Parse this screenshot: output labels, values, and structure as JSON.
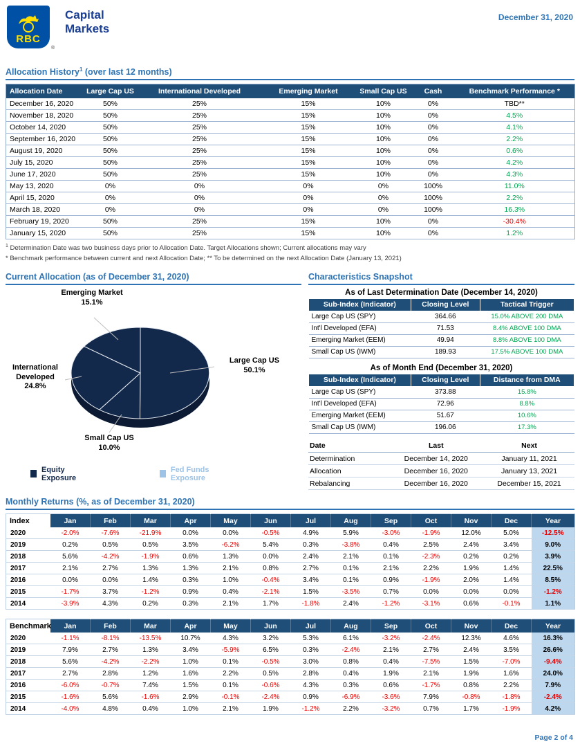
{
  "header": {
    "logo_text": "RBC",
    "registered_mark": "®",
    "brand": "Capital Markets",
    "date": "December 31, 2020"
  },
  "colors": {
    "rbc_blue": "#0051A5",
    "rbc_yellow": "#FEDF01",
    "table_header_navy": "#1F4E79",
    "accent_blue": "#2E74B5",
    "positive_green": "#00A651",
    "negative_red": "#E60000",
    "year_column_bg": "#BDD7EE",
    "pie_equity_navy": "#13294B",
    "pie_fed_funds_blue": "#9DC3E6"
  },
  "allocation_history": {
    "title_main": "Allocation History",
    "title_sup": "1",
    "title_suffix": " (over last 12 months)",
    "columns": [
      "Allocation Date",
      "Large Cap US",
      "International Developed",
      "Emerging Market",
      "Small Cap US",
      "Cash",
      "Benchmark Performance *"
    ],
    "rows": [
      [
        "December 16, 2020",
        "50%",
        "25%",
        "15%",
        "10%",
        "0%",
        "TBD**"
      ],
      [
        "November 18, 2020",
        "50%",
        "25%",
        "15%",
        "10%",
        "0%",
        "4.5%"
      ],
      [
        "October 14, 2020",
        "50%",
        "25%",
        "15%",
        "10%",
        "0%",
        "4.1%"
      ],
      [
        "September 16, 2020",
        "50%",
        "25%",
        "15%",
        "10%",
        "0%",
        "2.2%"
      ],
      [
        "August 19, 2020",
        "50%",
        "25%",
        "15%",
        "10%",
        "0%",
        "0.6%"
      ],
      [
        "July 15, 2020",
        "50%",
        "25%",
        "15%",
        "10%",
        "0%",
        "4.2%"
      ],
      [
        "June 17, 2020",
        "50%",
        "25%",
        "15%",
        "10%",
        "0%",
        "4.3%"
      ],
      [
        "May 13, 2020",
        "0%",
        "0%",
        "0%",
        "0%",
        "100%",
        "11.0%"
      ],
      [
        "April 15, 2020",
        "0%",
        "0%",
        "0%",
        "0%",
        "100%",
        "2.2%"
      ],
      [
        "March 18, 2020",
        "0%",
        "0%",
        "0%",
        "0%",
        "100%",
        "16.3%"
      ],
      [
        "February 19, 2020",
        "50%",
        "25%",
        "15%",
        "10%",
        "0%",
        "-30.4%"
      ],
      [
        "January 15, 2020",
        "50%",
        "25%",
        "15%",
        "10%",
        "0%",
        "1.2%"
      ]
    ],
    "footnote1_sup": "1",
    "footnote1_text": " Determination Date was two business days prior to Allocation Date. Target Allocations shown; Current allocations may vary",
    "footnote2": "* Benchmark performance between current and next Allocation Date;  ** To be determined on the next Allocation Date (January 13, 2021)"
  },
  "current_allocation": {
    "title": "Current Allocation (as of December 31, 2020)"
  },
  "chart_data": {
    "type": "pie",
    "title": "Current Allocation (as of December 31, 2020)",
    "labels": [
      "Large Cap US",
      "International Developed",
      "Emerging Market",
      "Small Cap US"
    ],
    "values": [
      50.1,
      24.8,
      15.1,
      10.0
    ],
    "display_values": [
      "50.1%",
      "24.8%",
      "15.1%",
      "10.0%"
    ],
    "legend": [
      "Equity Exposure",
      "Fed Funds Exposure"
    ],
    "legend_position": "bottom",
    "slice_color_equity": "#13294B",
    "slice_color_fed_funds": "#9DC3E6"
  },
  "characteristics": {
    "title": "Characteristics Snapshot",
    "determination_table": {
      "caption": "As of Last Determination Date (December 14, 2020)",
      "columns": [
        "Sub-Index (Indicator)",
        "Closing Level",
        "Tactical Trigger"
      ],
      "rows": [
        [
          "Large Cap US (SPY)",
          "364.66",
          "15.0% ABOVE 200 DMA"
        ],
        [
          "Int'l Developed (EFA)",
          "71.53",
          "8.4% ABOVE 100 DMA"
        ],
        [
          "Emerging Market (EEM)",
          "49.94",
          "8.8% ABOVE 100 DMA"
        ],
        [
          "Small Cap US (IWM)",
          "189.93",
          "17.5% ABOVE 100 DMA"
        ]
      ]
    },
    "month_end_table": {
      "caption": "As of Month End (December 31, 2020)",
      "columns": [
        "Sub-Index (Indicator)",
        "Closing Level",
        "Distance from DMA"
      ],
      "rows": [
        [
          "Large Cap US (SPY)",
          "373.88",
          "15.8%"
        ],
        [
          "Int'l Developed (EFA)",
          "72.96",
          "8.8%"
        ],
        [
          "Emerging Market (EEM)",
          "51.67",
          "10.6%"
        ],
        [
          "Small Cap US (IWM)",
          "196.06",
          "17.3%"
        ]
      ]
    },
    "dates_table": {
      "columns": [
        "Date",
        "Last",
        "Next"
      ],
      "rows": [
        [
          "Determination",
          "December 14, 2020",
          "January 11, 2021"
        ],
        [
          "Allocation",
          "December 16, 2020",
          "January 13, 2021"
        ],
        [
          "Rebalancing",
          "December 16, 2020",
          "December 15, 2021"
        ]
      ]
    }
  },
  "monthly_returns": {
    "title": "Monthly Returns (%, as of December 31, 2020)",
    "index_label": "Index",
    "benchmark_label": "Benchmark",
    "year_label": "Year",
    "months": [
      "Jan",
      "Feb",
      "Mar",
      "Apr",
      "May",
      "Jun",
      "Jul",
      "Aug",
      "Sep",
      "Oct",
      "Nov",
      "Dec"
    ],
    "index_rows": [
      {
        "year": "2020",
        "values": [
          "-2.0%",
          "-7.6%",
          "-21.9%",
          "0.0%",
          "0.0%",
          "-0.5%",
          "4.9%",
          "5.9%",
          "-3.0%",
          "-1.9%",
          "12.0%",
          "5.0%"
        ],
        "total": "-12.5%"
      },
      {
        "year": "2019",
        "values": [
          "0.2%",
          "0.5%",
          "0.5%",
          "3.5%",
          "-6.2%",
          "5.4%",
          "0.3%",
          "-3.8%",
          "0.4%",
          "2.5%",
          "2.4%",
          "3.4%"
        ],
        "total": "9.0%"
      },
      {
        "year": "2018",
        "values": [
          "5.6%",
          "-4.2%",
          "-1.9%",
          "0.6%",
          "1.3%",
          "0.0%",
          "2.4%",
          "2.1%",
          "0.1%",
          "-2.3%",
          "0.2%",
          "0.2%"
        ],
        "total": "3.9%"
      },
      {
        "year": "2017",
        "values": [
          "2.1%",
          "2.7%",
          "1.3%",
          "1.3%",
          "2.1%",
          "0.8%",
          "2.7%",
          "0.1%",
          "2.1%",
          "2.2%",
          "1.9%",
          "1.4%"
        ],
        "total": "22.5%"
      },
      {
        "year": "2016",
        "values": [
          "0.0%",
          "0.0%",
          "1.4%",
          "0.3%",
          "1.0%",
          "-0.4%",
          "3.4%",
          "0.1%",
          "0.9%",
          "-1.9%",
          "2.0%",
          "1.4%"
        ],
        "total": "8.5%"
      },
      {
        "year": "2015",
        "values": [
          "-1.7%",
          "3.7%",
          "-1.2%",
          "0.9%",
          "0.4%",
          "-2.1%",
          "1.5%",
          "-3.5%",
          "0.7%",
          "0.0%",
          "0.0%",
          "0.0%"
        ],
        "total": "-1.2%"
      },
      {
        "year": "2014",
        "values": [
          "-3.9%",
          "4.3%",
          "0.2%",
          "0.3%",
          "2.1%",
          "1.7%",
          "-1.8%",
          "2.4%",
          "-1.2%",
          "-3.1%",
          "0.6%",
          "-0.1%"
        ],
        "total": "1.1%"
      }
    ],
    "benchmark_rows": [
      {
        "year": "2020",
        "values": [
          "-1.1%",
          "-8.1%",
          "-13.5%",
          "10.7%",
          "4.3%",
          "3.2%",
          "5.3%",
          "6.1%",
          "-3.2%",
          "-2.4%",
          "12.3%",
          "4.6%"
        ],
        "total": "16.3%"
      },
      {
        "year": "2019",
        "values": [
          "7.9%",
          "2.7%",
          "1.3%",
          "3.4%",
          "-5.9%",
          "6.5%",
          "0.3%",
          "-2.4%",
          "2.1%",
          "2.7%",
          "2.4%",
          "3.5%"
        ],
        "total": "26.6%"
      },
      {
        "year": "2018",
        "values": [
          "5.6%",
          "-4.2%",
          "-2.2%",
          "1.0%",
          "0.1%",
          "-0.5%",
          "3.0%",
          "0.8%",
          "0.4%",
          "-7.5%",
          "1.5%",
          "-7.0%"
        ],
        "total": "-9.4%"
      },
      {
        "year": "2017",
        "values": [
          "2.7%",
          "2.8%",
          "1.2%",
          "1.6%",
          "2.2%",
          "0.5%",
          "2.8%",
          "0.4%",
          "1.9%",
          "2.1%",
          "1.9%",
          "1.6%"
        ],
        "total": "24.0%"
      },
      {
        "year": "2016",
        "values": [
          "-6.0%",
          "-0.7%",
          "7.4%",
          "1.5%",
          "0.1%",
          "-0.6%",
          "4.3%",
          "0.3%",
          "0.6%",
          "-1.7%",
          "0.8%",
          "2.2%"
        ],
        "total": "7.9%"
      },
      {
        "year": "2015",
        "values": [
          "-1.6%",
          "5.6%",
          "-1.6%",
          "2.9%",
          "-0.1%",
          "-2.4%",
          "0.9%",
          "-6.9%",
          "-3.6%",
          "7.9%",
          "-0.8%",
          "-1.8%"
        ],
        "total": "-2.4%"
      },
      {
        "year": "2014",
        "values": [
          "-4.0%",
          "4.8%",
          "0.4%",
          "1.0%",
          "2.1%",
          "1.9%",
          "-1.2%",
          "2.2%",
          "-3.2%",
          "0.7%",
          "1.7%",
          "-1.9%"
        ],
        "total": "4.2%"
      }
    ]
  },
  "footer": {
    "page_label": "Page 2 of 4"
  }
}
